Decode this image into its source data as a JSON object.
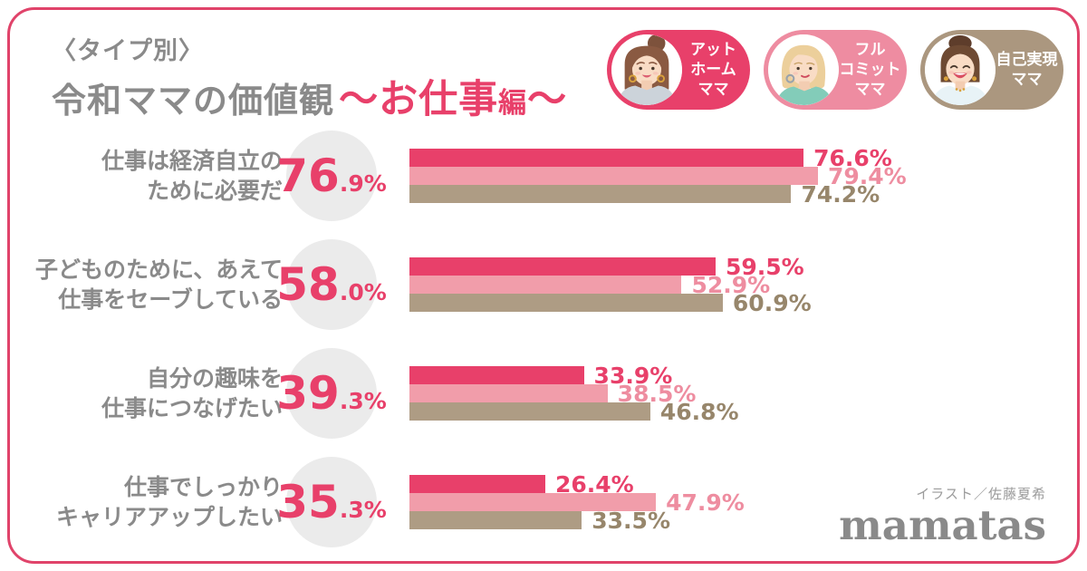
{
  "title": {
    "type_label": "〈タイプ別〉",
    "main": "令和ママの価値観",
    "accent_pre": "～お仕事",
    "accent_small": "編",
    "accent_post": "～"
  },
  "legend": {
    "items": [
      {
        "name": "アットホームママ",
        "lines": [
          "アット",
          "ホーム",
          "ママ"
        ],
        "color": "#e8406a"
      },
      {
        "name": "フルコミットママ",
        "lines": [
          "フル",
          "コミット",
          "ママ"
        ],
        "color": "#ee8ca1"
      },
      {
        "name": "自己実現ママ",
        "lines": [
          "自己実現",
          "ママ"
        ],
        "color": "#ab977f"
      }
    ]
  },
  "chart_data": {
    "type": "bar",
    "orientation": "horizontal",
    "unit": "%",
    "x_range": [
      0,
      100
    ],
    "legend_position": "top-right",
    "series": [
      {
        "name": "アットホームママ",
        "color": "#e8406a",
        "label_color": "#e8406a"
      },
      {
        "name": "フルコミットママ",
        "color": "#f19daa",
        "label_color": "#ee8da0"
      },
      {
        "name": "自己実現ママ",
        "color": "#ae9c84",
        "label_color": "#97866b"
      }
    ],
    "rows": [
      {
        "label_lines": [
          "仕事は経済自立の",
          "ために必要だ"
        ],
        "total": "76.9%",
        "total_big": "76",
        "total_small": ".9%",
        "values": [
          76.6,
          79.4,
          74.2
        ],
        "value_labels": [
          "76.6%",
          "79.4%",
          "74.2%"
        ]
      },
      {
        "label_lines": [
          "子どものために、あえて",
          "仕事をセーブしている"
        ],
        "total": "58.0%",
        "total_big": "58",
        "total_small": ".0%",
        "values": [
          59.5,
          52.9,
          60.9
        ],
        "value_labels": [
          "59.5%",
          "52.9%",
          "60.9%"
        ]
      },
      {
        "label_lines": [
          "自分の趣味を",
          "仕事につなげたい"
        ],
        "total": "39.3%",
        "total_big": "39",
        "total_small": ".3%",
        "values": [
          33.9,
          38.5,
          46.8
        ],
        "value_labels": [
          "33.9%",
          "38.5%",
          "46.8%"
        ]
      },
      {
        "label_lines": [
          "仕事でしっかり",
          "キャリアアップしたい"
        ],
        "total": "35.3%",
        "total_big": "35",
        "total_small": ".3%",
        "values": [
          26.4,
          47.9,
          33.5
        ],
        "value_labels": [
          "26.4%",
          "47.9%",
          "33.5%"
        ]
      }
    ]
  },
  "footer": {
    "credit": "イラスト／佐藤夏希",
    "logo": "mamatas"
  },
  "colors": {
    "border_pink": "#e0436a",
    "accent_pink": "#e8406a",
    "light_pink_bar": "#f19daa",
    "taupe_bar": "#ae9c84",
    "circle_bg": "#ebebeb",
    "text_gray": "#8a8a8a"
  }
}
